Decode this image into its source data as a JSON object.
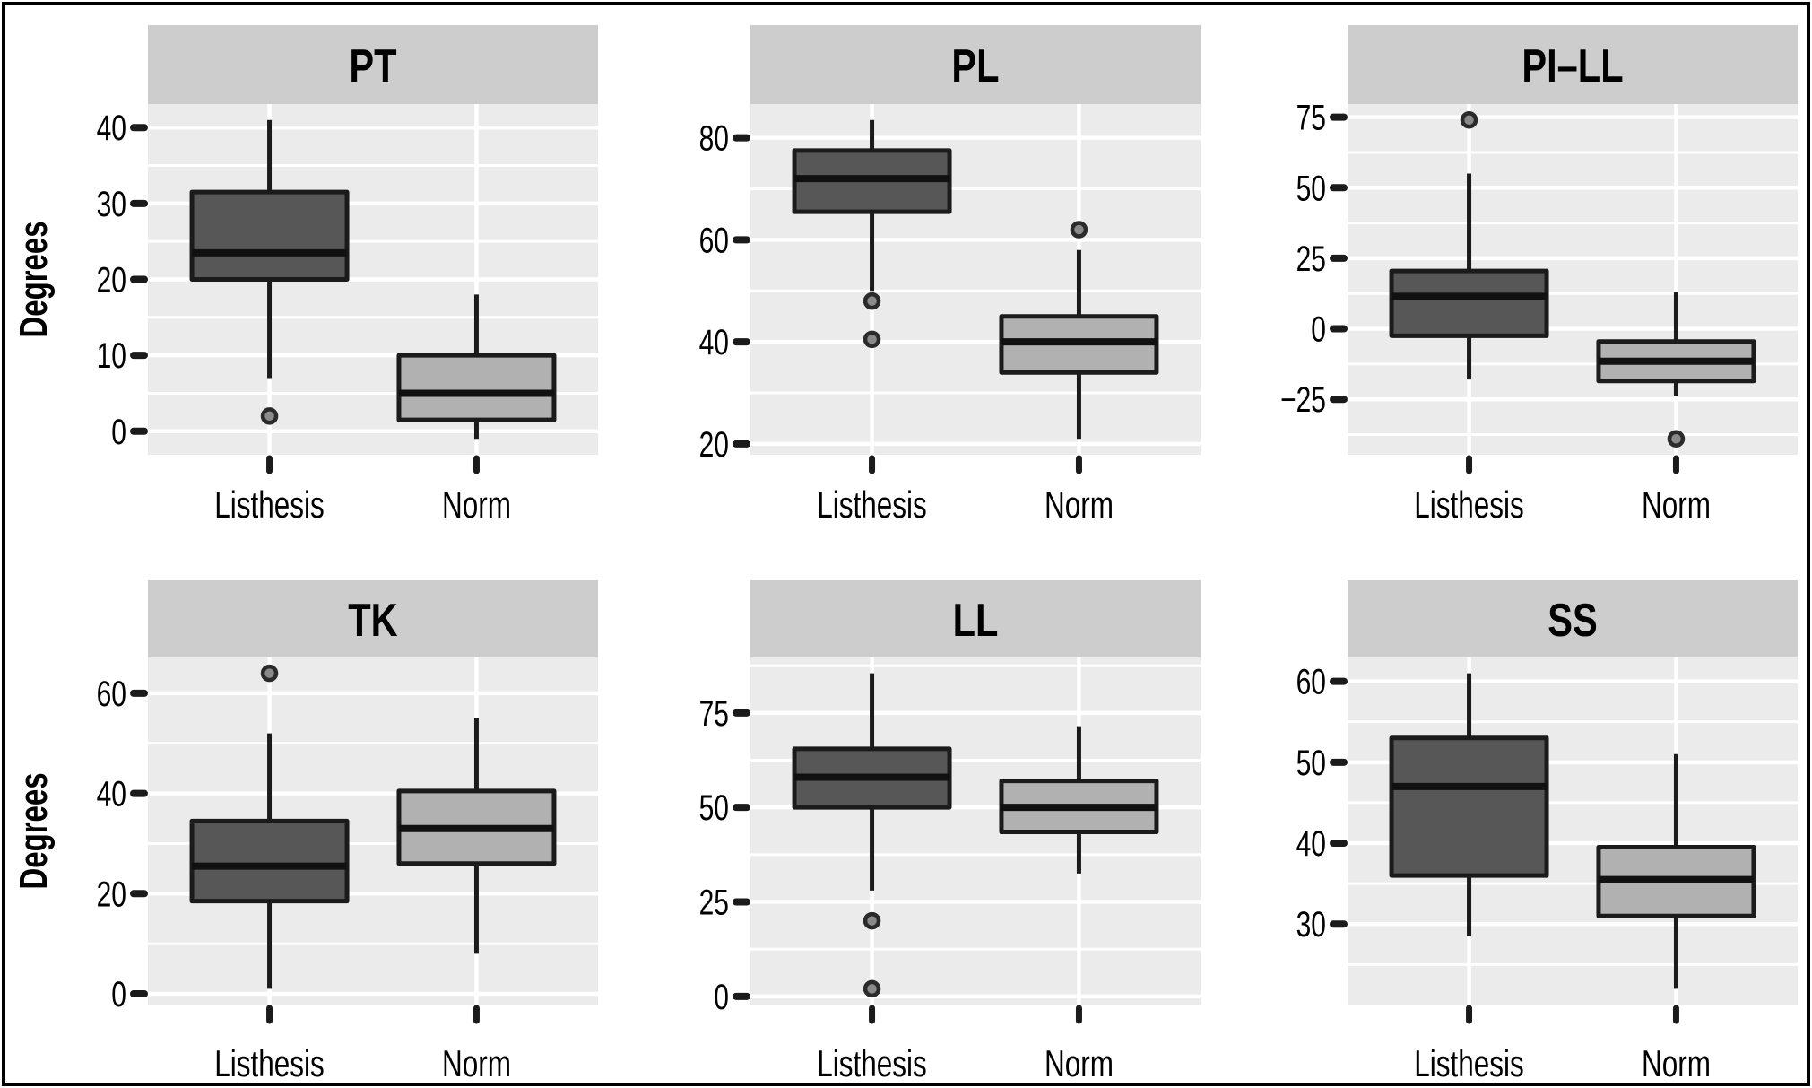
{
  "figure": {
    "border_color": "#000000",
    "background": "#ffffff"
  },
  "chart_data": {
    "type": "boxplot",
    "layout": "2x3-facet-grid",
    "legend_position": "none",
    "grid": "white gridlines on gray panel background",
    "ylabel": "Degrees",
    "categories": [
      "Listhesis",
      "Norm"
    ],
    "colors": {
      "listhesis_fill": "#575757",
      "norm_fill": "#b1b1b1",
      "box_stroke": "#1b1b1b",
      "median": "#111111",
      "whisker": "#1b1b1b",
      "strip_bg": "#cdcdcd",
      "panel_bg": "#ebebeb",
      "gridline": "#ffffff",
      "outlier_fill": "#8a8a8a",
      "outlier_stroke": "#2b2b2b",
      "text": "#000000"
    },
    "facets": [
      {
        "title": "PT",
        "yticks": [
          0,
          10,
          20,
          30,
          40
        ],
        "minor_step": 5,
        "boxes": [
          {
            "category": "Listhesis",
            "whisker_low": 7,
            "q1": 20,
            "median": 23.5,
            "q3": 31.5,
            "whisker_high": 41,
            "outliers": [
              2
            ]
          },
          {
            "category": "Norm",
            "whisker_low": -1,
            "q1": 1.5,
            "median": 5,
            "q3": 10,
            "whisker_high": 18,
            "outliers": []
          }
        ]
      },
      {
        "title": "PL",
        "yticks": [
          20,
          40,
          60,
          80
        ],
        "minor_step": 10,
        "boxes": [
          {
            "category": "Listhesis",
            "whisker_low": 50,
            "q1": 65.5,
            "median": 72,
            "q3": 77.5,
            "whisker_high": 83.5,
            "outliers": [
              48,
              40.5
            ]
          },
          {
            "category": "Norm",
            "whisker_low": 21,
            "q1": 34,
            "median": 40,
            "q3": 45,
            "whisker_high": 58,
            "outliers": [
              62
            ]
          }
        ]
      },
      {
        "title": "PI–LL",
        "yticks": [
          -25,
          0,
          25,
          50,
          75
        ],
        "minor_step": 12.5,
        "boxes": [
          {
            "category": "Listhesis",
            "whisker_low": -18,
            "q1": -2.5,
            "median": 11.5,
            "q3": 20.5,
            "whisker_high": 55,
            "outliers": [
              74
            ]
          },
          {
            "category": "Norm",
            "whisker_low": -24,
            "q1": -18.5,
            "median": -11.5,
            "q3": -4.5,
            "whisker_high": 13,
            "outliers": [
              -39
            ]
          }
        ]
      },
      {
        "title": "TK",
        "yticks": [
          0,
          20,
          40,
          60
        ],
        "minor_step": 10,
        "boxes": [
          {
            "category": "Listhesis",
            "whisker_low": 1,
            "q1": 18.5,
            "median": 25.5,
            "q3": 34.5,
            "whisker_high": 52,
            "outliers": [
              64
            ]
          },
          {
            "category": "Norm",
            "whisker_low": 8,
            "q1": 26,
            "median": 33,
            "q3": 40.5,
            "whisker_high": 55,
            "outliers": []
          }
        ]
      },
      {
        "title": "LL",
        "yticks": [
          0,
          25,
          50,
          75
        ],
        "minor_step": 12.5,
        "boxes": [
          {
            "category": "Listhesis",
            "whisker_low": 28,
            "q1": 50,
            "median": 58,
            "q3": 65.5,
            "whisker_high": 85.5,
            "outliers": [
              20,
              2
            ]
          },
          {
            "category": "Norm",
            "whisker_low": 32.5,
            "q1": 43.5,
            "median": 50,
            "q3": 57,
            "whisker_high": 71.5,
            "outliers": []
          }
        ]
      },
      {
        "title": "SS",
        "yticks": [
          30,
          40,
          50,
          60
        ],
        "minor_step": 5,
        "boxes": [
          {
            "category": "Listhesis",
            "whisker_low": 28.5,
            "q1": 36,
            "median": 47,
            "q3": 53,
            "whisker_high": 61,
            "outliers": []
          },
          {
            "category": "Norm",
            "whisker_low": 22,
            "q1": 31,
            "median": 35.5,
            "q3": 39.5,
            "whisker_high": 51,
            "outliers": []
          }
        ]
      }
    ]
  }
}
